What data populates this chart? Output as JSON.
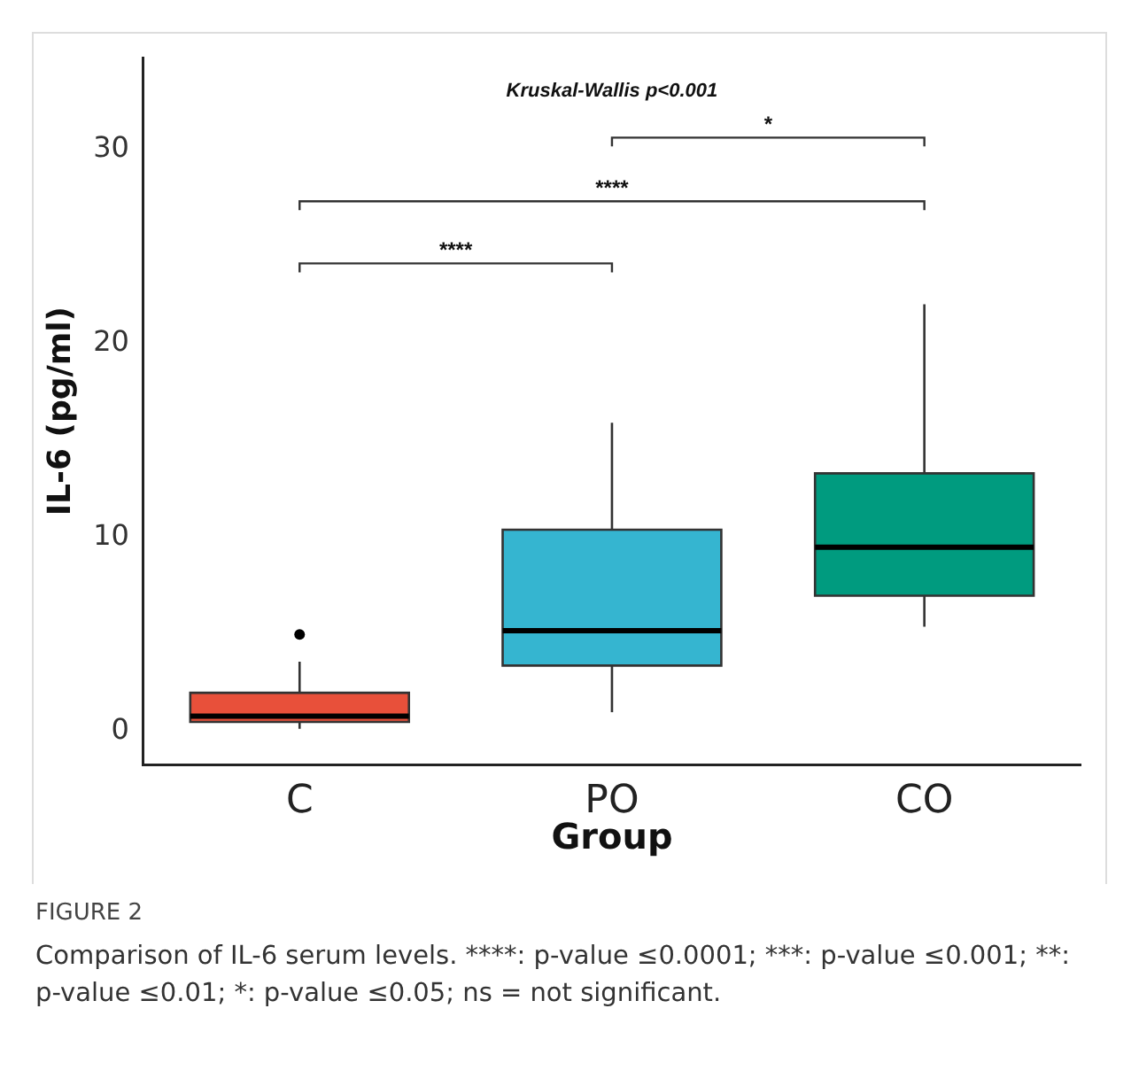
{
  "chart_data": {
    "type": "box",
    "xlabel": "Group",
    "ylabel": "IL-6 (pg/ml)",
    "categories": [
      "C",
      "PO",
      "CO"
    ],
    "colors": [
      "#e8503a",
      "#35b5d0",
      "#009b7f"
    ],
    "boxes": [
      {
        "low": 0.15,
        "q1": 0.5,
        "median": 0.8,
        "q3": 2.0,
        "high": 3.6,
        "outliers": [
          5.0
        ]
      },
      {
        "low": 1.0,
        "q1": 3.4,
        "median": 5.2,
        "q3": 10.4,
        "high": 15.9
      },
      {
        "low": 5.4,
        "q1": 7.0,
        "median": 9.5,
        "q3": 13.3,
        "high": 22.0
      }
    ],
    "ylim": [
      -1.7,
      34.7
    ],
    "yticks": [
      0,
      10,
      20,
      30
    ],
    "grid": false,
    "legend": false,
    "annotations": [
      "Kruskal-Wallis p<0.001",
      "****",
      "****",
      "*",
      "FIGURE 2",
      "Comparison of IL-6 serum levels. ****: p-value ≤0.0001; ***: p-value ≤0.001; **: p-value ≤0.01; *: p-value ≤0.05; ns = not significant."
    ]
  }
}
